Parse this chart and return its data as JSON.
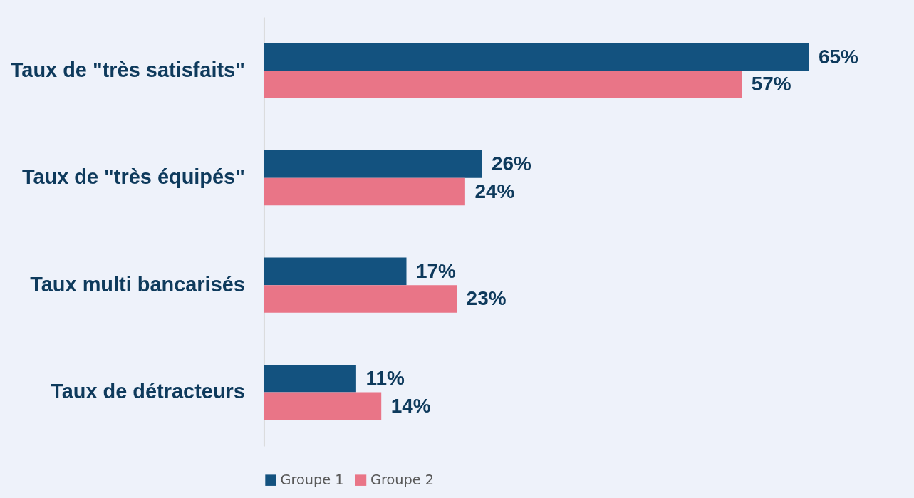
{
  "chart_data": {
    "type": "bar",
    "orientation": "horizontal",
    "categories": [
      "Taux de \"très satisfaits\"",
      "Taux de \"très équipés\"",
      "Taux multi bancarisés",
      "Taux de détracteurs"
    ],
    "series": [
      {
        "name": "Groupe 1",
        "color": "#13527f",
        "values": [
          65,
          26,
          17,
          11
        ],
        "value_labels": [
          "65%",
          "26%",
          "17%",
          "11%"
        ]
      },
      {
        "name": "Groupe 2",
        "color": "#e97587",
        "values": [
          57,
          24,
          23,
          14
        ],
        "value_labels": [
          "57%",
          "24%",
          "23%",
          "14%"
        ]
      }
    ],
    "legend": "bottom"
  }
}
